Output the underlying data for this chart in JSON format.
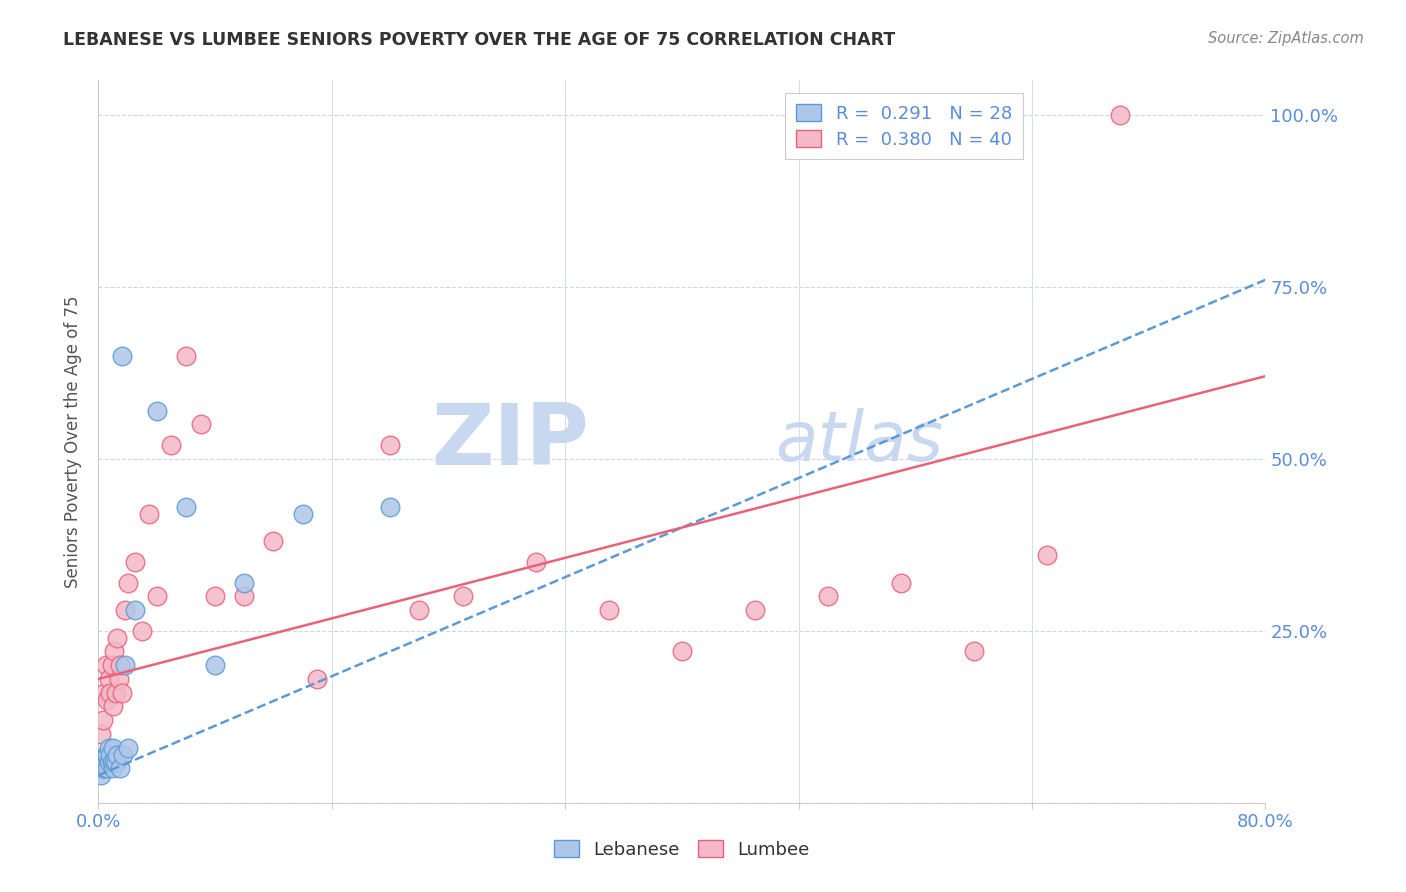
{
  "title": "LEBANESE VS LUMBEE SENIORS POVERTY OVER THE AGE OF 75 CORRELATION CHART",
  "source": "Source: ZipAtlas.com",
  "ylabel": "Seniors Poverty Over the Age of 75",
  "ytick_labels": [
    "",
    "25.0%",
    "50.0%",
    "75.0%",
    "100.0%"
  ],
  "ytick_values": [
    0.0,
    0.25,
    0.5,
    0.75,
    1.0
  ],
  "xtick_values": [
    0.0,
    0.16,
    0.32,
    0.48,
    0.64,
    0.8
  ],
  "legend_lebanese": "R =  0.291   N = 28",
  "legend_lumbee": "R =  0.380   N = 40",
  "watermark_zip": "ZIP",
  "watermark_atlas": "atlas",
  "lebanese_color": "#aec6e8",
  "lebanese_edge_color": "#5b9bd5",
  "lumbee_color": "#f4b8c8",
  "lumbee_edge_color": "#e8637a",
  "axis_color": "#5b8dd9",
  "grid_color": "#d0d8e8",
  "title_color": "#333333",
  "watermark_color": "#c8d8f0",
  "right_label_color": "#5b8dd9",
  "background_color": "#ffffff",
  "leb_line_color": "#5b9bd5",
  "lum_line_color": "#e8637a",
  "lebanese_x": [
    0.002,
    0.003,
    0.004,
    0.005,
    0.005,
    0.006,
    0.006,
    0.007,
    0.007,
    0.008,
    0.009,
    0.01,
    0.01,
    0.011,
    0.012,
    0.013,
    0.015,
    0.016,
    0.017,
    0.018,
    0.02,
    0.025,
    0.04,
    0.06,
    0.08,
    0.1,
    0.14,
    0.2
  ],
  "lebanese_y": [
    0.04,
    0.05,
    0.05,
    0.06,
    0.07,
    0.05,
    0.07,
    0.06,
    0.08,
    0.07,
    0.06,
    0.05,
    0.08,
    0.06,
    0.06,
    0.07,
    0.05,
    0.65,
    0.07,
    0.2,
    0.08,
    0.28,
    0.57,
    0.43,
    0.2,
    0.32,
    0.42,
    0.43
  ],
  "lumbee_x": [
    0.002,
    0.003,
    0.004,
    0.005,
    0.006,
    0.007,
    0.008,
    0.009,
    0.01,
    0.011,
    0.012,
    0.013,
    0.014,
    0.015,
    0.016,
    0.018,
    0.02,
    0.025,
    0.03,
    0.035,
    0.04,
    0.05,
    0.06,
    0.07,
    0.08,
    0.1,
    0.12,
    0.15,
    0.2,
    0.22,
    0.25,
    0.3,
    0.35,
    0.4,
    0.45,
    0.5,
    0.55,
    0.6,
    0.65,
    0.7
  ],
  "lumbee_y": [
    0.1,
    0.12,
    0.16,
    0.2,
    0.15,
    0.18,
    0.16,
    0.2,
    0.14,
    0.22,
    0.16,
    0.24,
    0.18,
    0.2,
    0.16,
    0.28,
    0.32,
    0.35,
    0.25,
    0.42,
    0.3,
    0.52,
    0.65,
    0.55,
    0.3,
    0.3,
    0.38,
    0.18,
    0.52,
    0.28,
    0.3,
    0.35,
    0.28,
    0.22,
    0.28,
    0.3,
    0.32,
    0.22,
    0.36,
    1.0
  ],
  "xlim": [
    0.0,
    0.8
  ],
  "ylim": [
    0.0,
    1.05
  ]
}
